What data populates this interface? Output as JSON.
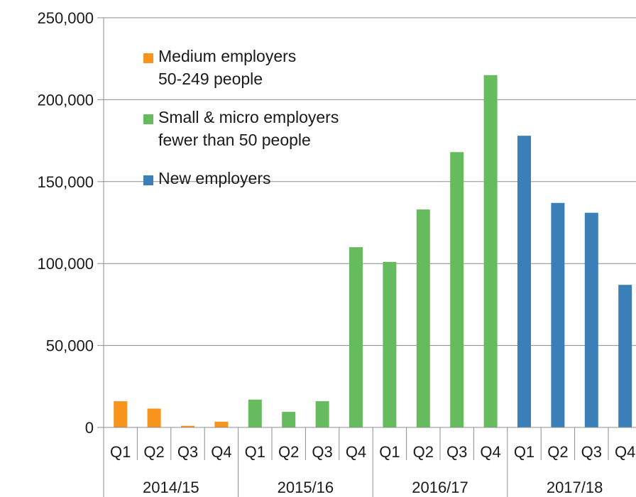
{
  "chart_data": {
    "type": "bar",
    "ylim": [
      0,
      250000
    ],
    "yticks": [
      0,
      50000,
      100000,
      150000,
      200000,
      250000
    ],
    "ytick_labels": [
      "0",
      "50,000",
      "100,000",
      "150,000",
      "200,000",
      "250,000"
    ],
    "grid": true,
    "legend_position": "top-left",
    "legend": [
      {
        "line1": "Medium employers",
        "line2": "50-249 people",
        "color": "#f7941d"
      },
      {
        "line1": "Small & micro employers",
        "line2": "fewer than 50 people",
        "color": "#66bb5e"
      },
      {
        "line1": "New employers",
        "line2": "",
        "color": "#3a7fb8"
      }
    ],
    "groups": [
      {
        "label": "2014/15",
        "quarters": [
          "Q1",
          "Q2",
          "Q3",
          "Q4"
        ],
        "values": [
          16000,
          11500,
          1000,
          3500
        ],
        "color": "#f7941d"
      },
      {
        "label": "2015/16",
        "quarters": [
          "Q1",
          "Q2",
          "Q3",
          "Q4"
        ],
        "values": [
          17000,
          9500,
          16000,
          110000
        ],
        "color": "#66bb5e"
      },
      {
        "label": "2016/17",
        "quarters": [
          "Q1",
          "Q2",
          "Q3",
          "Q4"
        ],
        "values": [
          101000,
          133000,
          168000,
          215000
        ],
        "color": "#66bb5e"
      },
      {
        "label": "2017/18",
        "quarters": [
          "Q1",
          "Q2",
          "Q3",
          "Q4"
        ],
        "values": [
          178000,
          137000,
          131000,
          87000
        ],
        "color": "#3a7fb8"
      }
    ]
  }
}
